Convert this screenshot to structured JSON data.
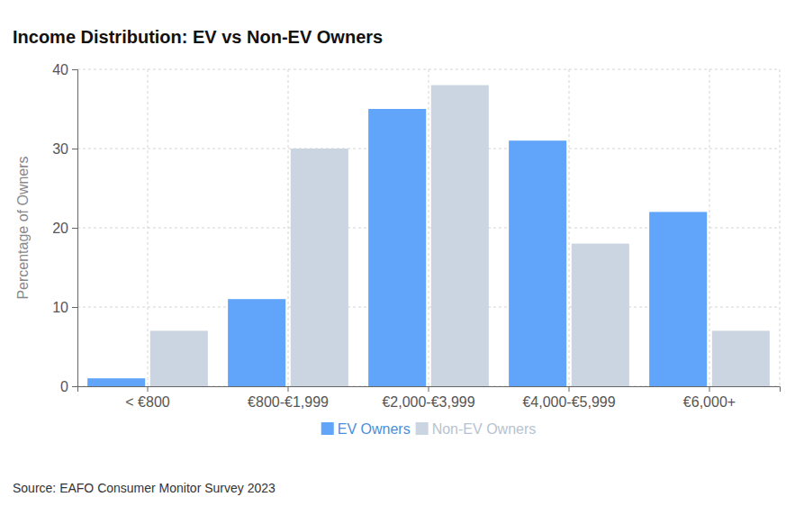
{
  "chart_data": {
    "type": "bar",
    "title": "Income Distribution: EV vs Non-EV Owners",
    "y_label": "Percentage of Owners",
    "categories": [
      "< €800",
      "€800-€1,999",
      "€2,000-€3,999",
      "€4,000-€5,999",
      "€6,000+"
    ],
    "series": [
      {
        "name": "EV Owners",
        "color": "#60a5fa",
        "values": [
          1,
          11,
          35,
          31,
          22
        ]
      },
      {
        "name": "Non-EV Owners",
        "color": "#cbd5e1",
        "values": [
          7,
          30,
          38,
          18,
          7
        ]
      }
    ],
    "ylim": [
      0,
      40
    ],
    "yticks": [
      0,
      10,
      20,
      30,
      40
    ],
    "grid": true,
    "legend": "bottom",
    "annotations": [
      "Source: EAFO Consumer Monitor Survey 2023"
    ]
  }
}
